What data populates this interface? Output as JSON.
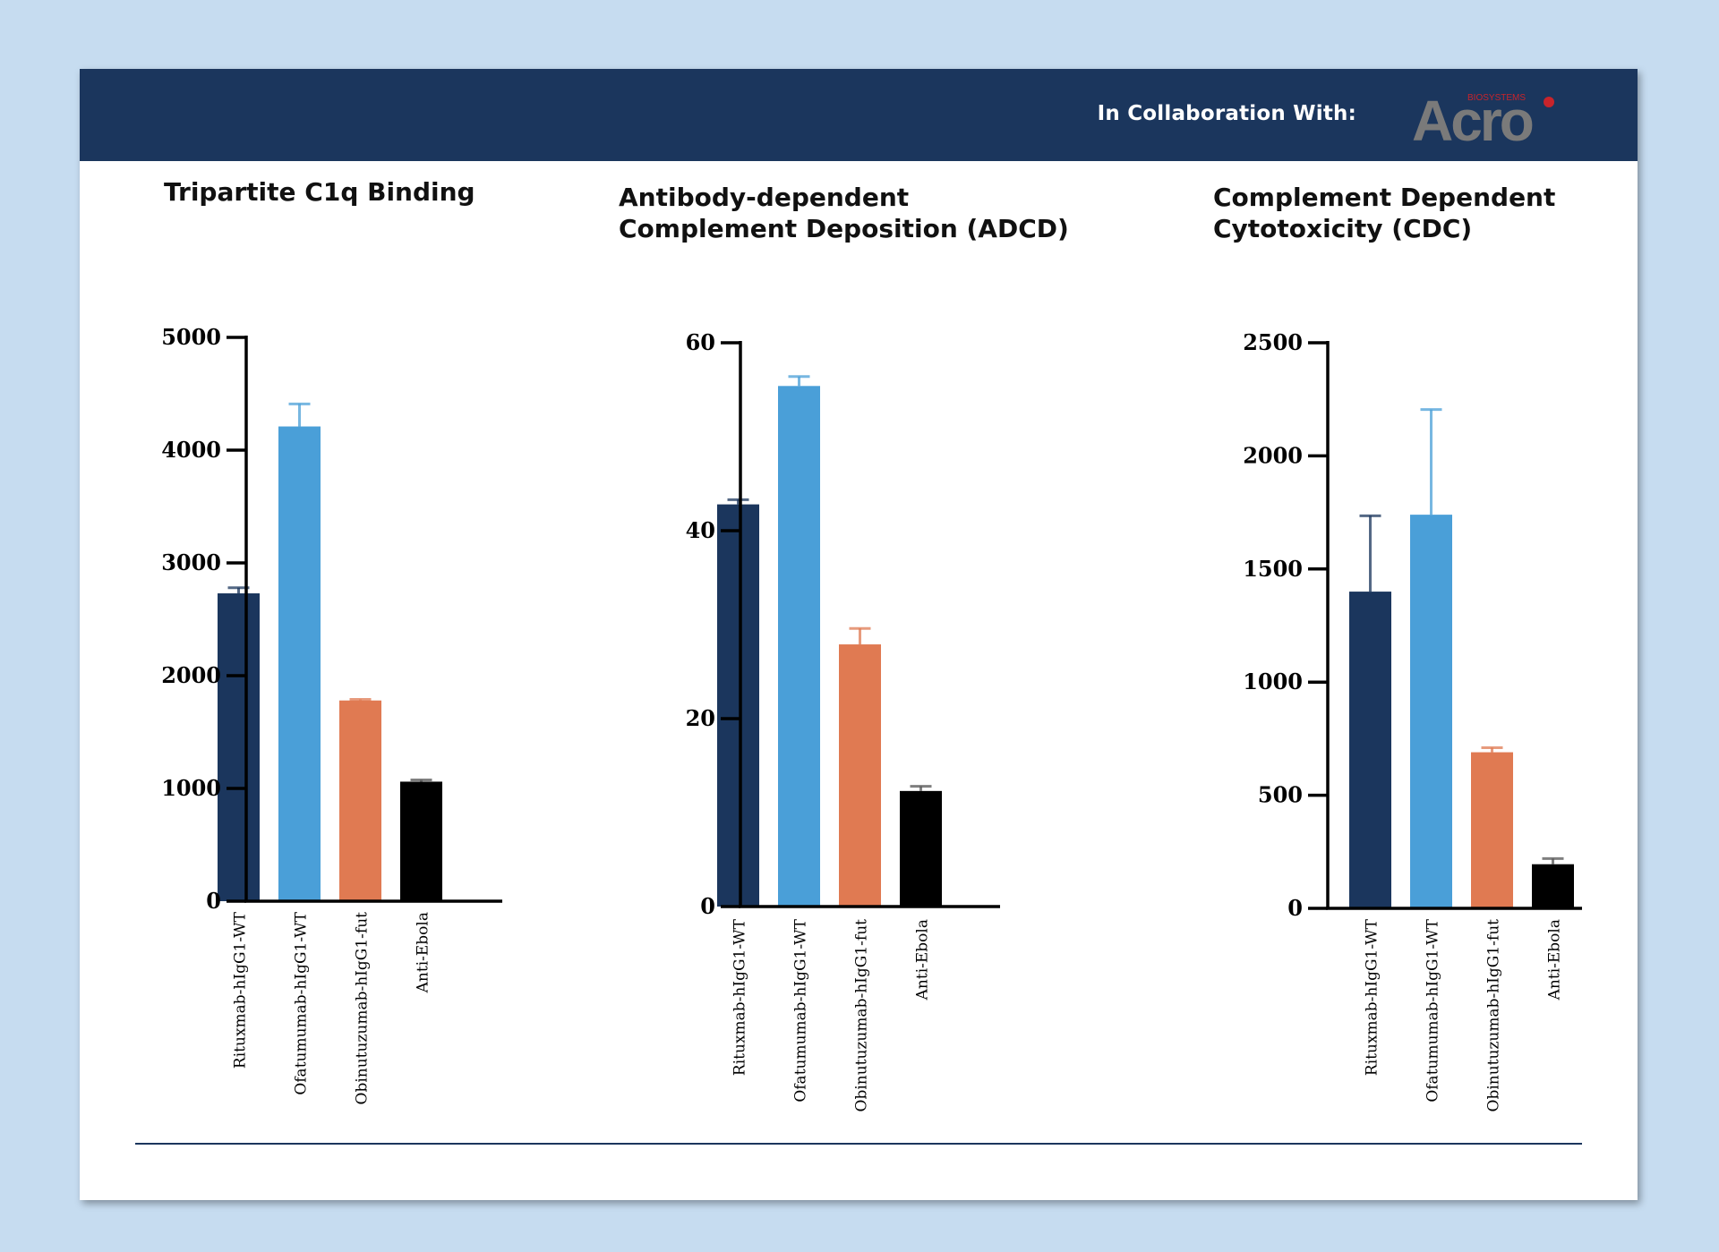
{
  "header": {
    "collab_text": "In Collaboration With:",
    "logo": {
      "brand": "Acro",
      "tagline": "BIOSYSTEMS",
      "colors": {
        "wordmark": "#7a7a7a",
        "accent": "#c8242b"
      }
    }
  },
  "colors": {
    "Rituxmab-hIgG1-WT": "#1b365d",
    "Ofatumumab-hIgG1-WT": "#4a9fd8",
    "Obinutuzumab-hIgG1-fut": "#e07a52",
    "Anti-Ebola": "#000000"
  },
  "chart_data": [
    {
      "type": "bar",
      "title_lines": [
        "Tripartite C1q Binding"
      ],
      "categories": [
        "Rituxmab-hIgG1-WT",
        "Ofatumumab-hIgG1-WT",
        "Obinutuzumab-hIgG1-fut",
        "Anti-Ebola"
      ],
      "values": [
        2730,
        4210,
        1780,
        1060
      ],
      "error": [
        50,
        200,
        10,
        15
      ],
      "ylim": [
        0,
        5000
      ],
      "yticks": [
        0,
        1000,
        2000,
        3000,
        4000,
        5000
      ],
      "xlabel": "",
      "ylabel": ""
    },
    {
      "type": "bar",
      "title_lines": [
        "Antibody-dependent",
        "Complement Deposition (ADCD)"
      ],
      "categories": [
        "Rituxmab-hIgG1-WT",
        "Ofatumumab-hIgG1-WT",
        "Obinutuzumab-hIgG1-fut",
        "Anti-Ebola"
      ],
      "values": [
        42.8,
        55.4,
        27.9,
        12.3
      ],
      "error": [
        0.5,
        1.0,
        1.7,
        0.5
      ],
      "ylim": [
        0,
        60
      ],
      "yticks": [
        0,
        20,
        40,
        60
      ],
      "xlabel": "",
      "ylabel": ""
    },
    {
      "type": "bar",
      "title_lines": [
        "Complement Dependent",
        "Cytotoxicity (CDC)"
      ],
      "categories": [
        "Rituxmab-hIgG1-WT",
        "Ofatumumab-hIgG1-WT",
        "Obinutuzumab-hIgG1-fut",
        "Anti-Ebola"
      ],
      "values": [
        1400,
        1740,
        690,
        195
      ],
      "error": [
        335,
        465,
        20,
        25
      ],
      "ylim": [
        0,
        2500
      ],
      "yticks": [
        0,
        500,
        1000,
        1500,
        2000,
        2500
      ],
      "xlabel": "",
      "ylabel": ""
    }
  ]
}
